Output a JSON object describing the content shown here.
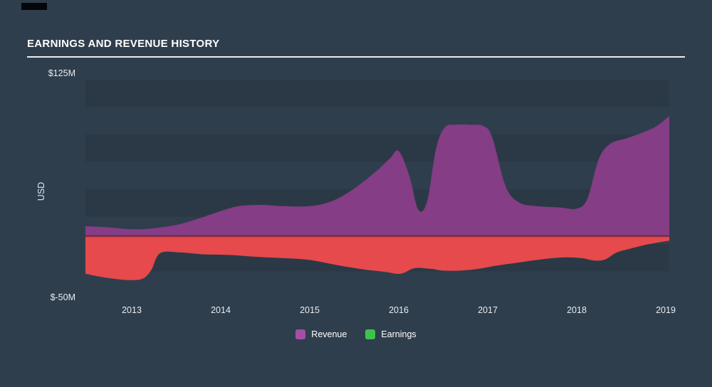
{
  "page": {
    "background": "#2f3e4d"
  },
  "header": {
    "title": "EARNINGS AND REVENUE HISTORY"
  },
  "legend": {
    "revenue_label": "Revenue",
    "earnings_label": "Earnings",
    "revenue_color": "#a44fa4",
    "earnings_color": "#3ec24e"
  },
  "chart_data": {
    "type": "area",
    "title": "EARNINGS AND REVENUE HISTORY",
    "ylabel": "USD",
    "unit": "$M",
    "grid": "horizontal-bands",
    "legend_position": "bottom-center",
    "y_axis": {
      "max": 125,
      "min": -50,
      "max_label": "$125M",
      "min_label": "$-50M"
    },
    "x_axis": {
      "ticks": [
        "2013",
        "2014",
        "2015",
        "2016",
        "2017",
        "2018",
        "2019"
      ],
      "tick_years": [
        2013,
        2014,
        2015,
        2016,
        2017,
        2018,
        2019
      ],
      "range": [
        2012.48,
        2019.04
      ]
    },
    "series": [
      {
        "name": "Revenue",
        "color": "#8a3d89",
        "points": [
          [
            2012.48,
            8
          ],
          [
            2012.75,
            7
          ],
          [
            2013.0,
            5.5
          ],
          [
            2013.2,
            6
          ],
          [
            2013.5,
            9
          ],
          [
            2013.75,
            14
          ],
          [
            2014.0,
            20
          ],
          [
            2014.2,
            24
          ],
          [
            2014.45,
            25
          ],
          [
            2014.7,
            24
          ],
          [
            2015.0,
            24
          ],
          [
            2015.25,
            28
          ],
          [
            2015.5,
            38
          ],
          [
            2015.75,
            52
          ],
          [
            2015.9,
            62
          ],
          [
            2016.0,
            68
          ],
          [
            2016.12,
            48
          ],
          [
            2016.22,
            21
          ],
          [
            2016.32,
            28
          ],
          [
            2016.42,
            70
          ],
          [
            2016.52,
            87
          ],
          [
            2016.65,
            89
          ],
          [
            2016.8,
            89
          ],
          [
            2016.95,
            88
          ],
          [
            2017.05,
            79
          ],
          [
            2017.2,
            40
          ],
          [
            2017.35,
            27
          ],
          [
            2017.55,
            24
          ],
          [
            2017.8,
            23
          ],
          [
            2018.0,
            22
          ],
          [
            2018.12,
            30
          ],
          [
            2018.25,
            62
          ],
          [
            2018.38,
            74
          ],
          [
            2018.55,
            78
          ],
          [
            2018.75,
            83
          ],
          [
            2018.9,
            88
          ],
          [
            2019.04,
            96
          ]
        ]
      },
      {
        "name": "Earnings",
        "color": "#ee4b4c",
        "points": [
          [
            2012.48,
            -30
          ],
          [
            2012.7,
            -33
          ],
          [
            2012.95,
            -35
          ],
          [
            2013.12,
            -34
          ],
          [
            2013.22,
            -27
          ],
          [
            2013.32,
            -13.5
          ],
          [
            2013.55,
            -13
          ],
          [
            2013.8,
            -14.5
          ],
          [
            2014.1,
            -15
          ],
          [
            2014.4,
            -16.5
          ],
          [
            2014.7,
            -17.5
          ],
          [
            2015.0,
            -19
          ],
          [
            2015.3,
            -23
          ],
          [
            2015.6,
            -26.5
          ],
          [
            2015.85,
            -28.5
          ],
          [
            2016.02,
            -30
          ],
          [
            2016.18,
            -25.5
          ],
          [
            2016.35,
            -26
          ],
          [
            2016.5,
            -27.5
          ],
          [
            2016.7,
            -27.5
          ],
          [
            2016.9,
            -26
          ],
          [
            2017.1,
            -23.5
          ],
          [
            2017.35,
            -21
          ],
          [
            2017.6,
            -18.5
          ],
          [
            2017.85,
            -17
          ],
          [
            2018.05,
            -17.5
          ],
          [
            2018.2,
            -19.5
          ],
          [
            2018.32,
            -18.5
          ],
          [
            2018.45,
            -13
          ],
          [
            2018.6,
            -10
          ],
          [
            2018.8,
            -6.5
          ],
          [
            2019.04,
            -3.5
          ]
        ]
      }
    ]
  }
}
